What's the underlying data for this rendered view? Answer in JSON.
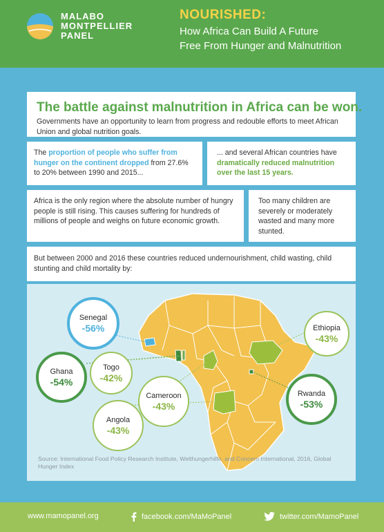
{
  "brand": {
    "line1": "MALABO",
    "line2": "MONTPELLIER",
    "line3": "PANEL"
  },
  "report": {
    "title": "NOURISHED:",
    "subtitle_line1": "How Africa Can Build A Future",
    "subtitle_line2": "Free From Hunger and Malnutrition"
  },
  "intro": {
    "headline": "The battle against malnutrition in Africa can be won.",
    "body": "Governments have an opportunity to learn from progress and redouble efforts to meet African Union and global nutrition goals."
  },
  "fact1": {
    "pre": "The ",
    "highlight": "proportion of people who suffer from hunger on the continent dropped",
    "post": " from 27.6% to 20% between 1990 and 2015..."
  },
  "fact2": {
    "pre": "... and several African countries have ",
    "highlight": "dramatically reduced malnutrition over the last 15 years."
  },
  "fact3": {
    "text": "Africa is the only region where the absolute number of hungry people is still rising. This causes suffering for hundreds of millions of people and weighs on future economic growth."
  },
  "fact4": {
    "text": "Too many children are severely or moderately wasted and many more stunted."
  },
  "lead": {
    "text": "But between 2000 and 2016 these countries reduced undernourishment, child wasting, child stunting and child mortality by:"
  },
  "countries": [
    {
      "name": "Senegal",
      "value": "-56%",
      "color": "#4fb2dd"
    },
    {
      "name": "Ghana",
      "value": "-54%",
      "color": "#4a9a4a"
    },
    {
      "name": "Togo",
      "value": "-42%",
      "color": "#9bc35a"
    },
    {
      "name": "Cameroon",
      "value": "-43%",
      "color": "#9bc35a"
    },
    {
      "name": "Angola",
      "value": "-43%",
      "color": "#9bc35a"
    },
    {
      "name": "Ethiopia",
      "value": "-43%",
      "color": "#9bc35a"
    },
    {
      "name": "Rwanda",
      "value": "-53%",
      "color": "#4a9a4a"
    }
  ],
  "map_colors": {
    "land": "#f2c14e",
    "borders": "#ffffff",
    "highlight": "#9bbf3c",
    "senegal": "#4fb2dd",
    "ghana_togo": "#6aa84f"
  },
  "source": {
    "text": "Source: International Food Policy Research Institute, Welthungerhilfe, and Concern International, 2016, Global Hunger Index"
  },
  "footer": {
    "website": "www.mamopanel.org",
    "facebook": "facebook.com/MaMoPanel",
    "twitter": "twitter.com/MamoPanel"
  }
}
